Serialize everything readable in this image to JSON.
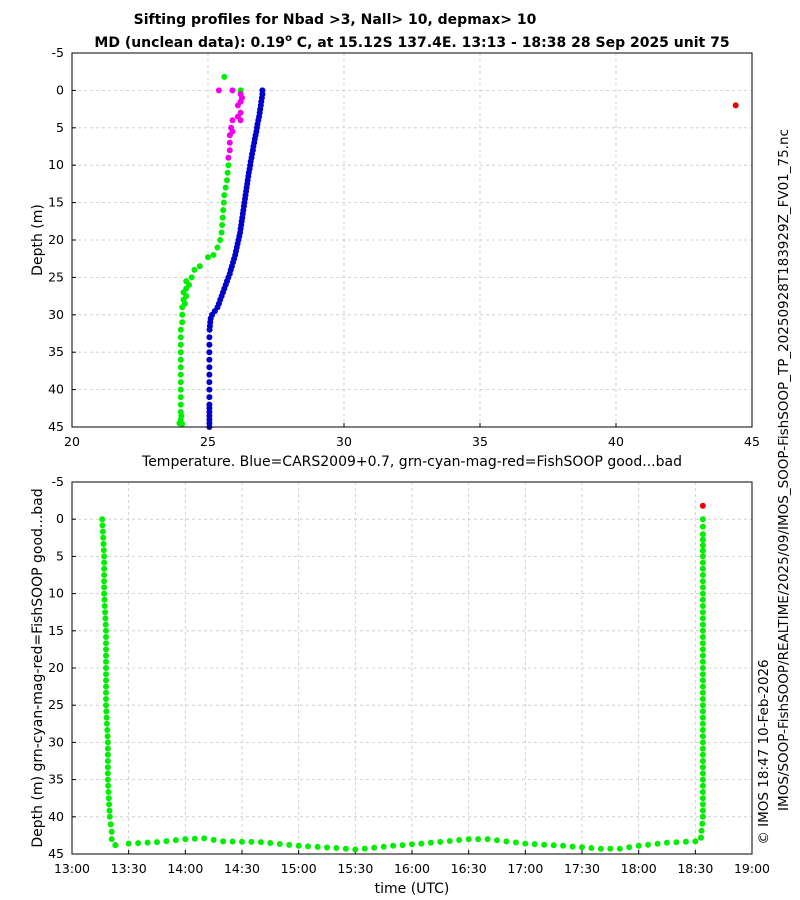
{
  "figure": {
    "title_line1": "Sifting profiles for Nbad >3, Nall> 10, depmax> 10",
    "title_line2_prefix": "MD (unclean data): 0.19",
    "title_line2_degree": "o",
    "title_line2_suffix": " C, at 15.12S 137.4E. 13:13 - 18:38 28 Sep 2025 unit 75",
    "right_label": "IMOS/SOOP-FishSOOP/REALTIME/2025/09/IMOS_SOOP-FishSOOP_TP_20250928T183929Z_FV01_75.nc",
    "right_label_lower": "© IMOS 18:47 10-Feb-2026",
    "colors": {
      "blue": "#0000cc",
      "green": "#00ee00",
      "magenta": "#ee00ee",
      "red": "#ee0000",
      "grid": "#c8c8c8"
    }
  },
  "chart_data": [
    {
      "type": "scatter",
      "title": "",
      "xlabel": "Temperature. Blue=CARS2009+0.7, grn-cyan-mag-red=FishSOOP good...bad",
      "ylabel": "Depth (m)",
      "xlim": [
        20,
        45
      ],
      "ylim": [
        45,
        -5
      ],
      "xticks": [
        "20",
        "25",
        "30",
        "35",
        "40",
        "45"
      ],
      "yticks": [
        "-5",
        "0",
        "5",
        "10",
        "15",
        "20",
        "25",
        "30",
        "35",
        "40",
        "45"
      ],
      "grid": true,
      "series": [
        {
          "name": "CARS2009+0.7",
          "color": "blue",
          "points": [
            [
              27.0,
              0
            ],
            [
              27.0,
              0.5
            ],
            [
              26.98,
              1
            ],
            [
              26.96,
              1.5
            ],
            [
              26.94,
              2
            ],
            [
              26.92,
              2.5
            ],
            [
              26.9,
              3
            ],
            [
              26.88,
              3.5
            ],
            [
              26.85,
              4
            ],
            [
              26.82,
              4.5
            ],
            [
              26.8,
              5
            ],
            [
              26.78,
              5.5
            ],
            [
              26.75,
              6
            ],
            [
              26.72,
              6.5
            ],
            [
              26.7,
              7
            ],
            [
              26.67,
              7.5
            ],
            [
              26.65,
              8
            ],
            [
              26.62,
              8.5
            ],
            [
              26.6,
              9
            ],
            [
              26.57,
              9.5
            ],
            [
              26.55,
              10
            ],
            [
              26.53,
              10.5
            ],
            [
              26.5,
              11
            ],
            [
              26.48,
              11.5
            ],
            [
              26.46,
              12
            ],
            [
              26.44,
              12.5
            ],
            [
              26.42,
              13
            ],
            [
              26.4,
              13.5
            ],
            [
              26.38,
              14
            ],
            [
              26.36,
              14.5
            ],
            [
              26.34,
              15
            ],
            [
              26.32,
              15.5
            ],
            [
              26.3,
              16
            ],
            [
              26.28,
              16.5
            ],
            [
              26.26,
              17
            ],
            [
              26.24,
              17.5
            ],
            [
              26.22,
              18
            ],
            [
              26.2,
              18.5
            ],
            [
              26.18,
              19
            ],
            [
              26.15,
              19.5
            ],
            [
              26.12,
              20
            ],
            [
              26.09,
              20.5
            ],
            [
              26.06,
              21
            ],
            [
              26.03,
              21.5
            ],
            [
              26.0,
              22
            ],
            [
              25.96,
              22.5
            ],
            [
              25.92,
              23
            ],
            [
              25.88,
              23.5
            ],
            [
              25.84,
              24
            ],
            [
              25.8,
              24.5
            ],
            [
              25.75,
              25
            ],
            [
              25.7,
              25.5
            ],
            [
              25.65,
              26
            ],
            [
              25.6,
              26.5
            ],
            [
              25.55,
              27
            ],
            [
              25.5,
              27.5
            ],
            [
              25.45,
              28
            ],
            [
              25.4,
              28.5
            ],
            [
              25.35,
              29
            ],
            [
              25.25,
              29.5
            ],
            [
              25.15,
              30
            ],
            [
              25.1,
              30.5
            ],
            [
              25.08,
              31
            ],
            [
              25.07,
              31.5
            ],
            [
              25.06,
              32
            ],
            [
              25.05,
              33
            ],
            [
              25.05,
              34
            ],
            [
              25.05,
              35
            ],
            [
              25.05,
              36
            ],
            [
              25.05,
              37
            ],
            [
              25.05,
              38
            ],
            [
              25.05,
              39
            ],
            [
              25.05,
              40
            ],
            [
              25.05,
              41
            ],
            [
              25.05,
              42
            ],
            [
              25.05,
              42.5
            ],
            [
              25.05,
              43
            ],
            [
              25.05,
              43.5
            ],
            [
              25.05,
              44
            ],
            [
              25.05,
              44.5
            ],
            [
              25.05,
              45
            ]
          ]
        },
        {
          "name": "FishSOOP good",
          "color": "green",
          "points": [
            [
              25.6,
              -1.8
            ],
            [
              26.2,
              0
            ],
            [
              25.75,
              10
            ],
            [
              25.72,
              11
            ],
            [
              25.7,
              12
            ],
            [
              25.65,
              13
            ],
            [
              25.6,
              14
            ],
            [
              25.58,
              15
            ],
            [
              25.56,
              16
            ],
            [
              25.54,
              17
            ],
            [
              25.52,
              18
            ],
            [
              25.5,
              19
            ],
            [
              25.45,
              20
            ],
            [
              25.35,
              21
            ],
            [
              25.2,
              22
            ],
            [
              25.0,
              22.3
            ],
            [
              24.7,
              23.5
            ],
            [
              24.5,
              24
            ],
            [
              24.4,
              25
            ],
            [
              24.2,
              25.5
            ],
            [
              24.3,
              26
            ],
            [
              24.2,
              26.5
            ],
            [
              24.1,
              27
            ],
            [
              24.2,
              27.5
            ],
            [
              24.1,
              28
            ],
            [
              24.15,
              28.5
            ],
            [
              24.05,
              29
            ],
            [
              24.05,
              30
            ],
            [
              24.05,
              31
            ],
            [
              24.0,
              32
            ],
            [
              24.0,
              33
            ],
            [
              24.0,
              34
            ],
            [
              24.0,
              35
            ],
            [
              24.0,
              36
            ],
            [
              24.0,
              37
            ],
            [
              24.0,
              38
            ],
            [
              24.0,
              39
            ],
            [
              24.0,
              40
            ],
            [
              24.0,
              41
            ],
            [
              24.0,
              42
            ],
            [
              24.0,
              43
            ],
            [
              24.02,
              43.5
            ],
            [
              24.0,
              44
            ],
            [
              23.95,
              44.5
            ],
            [
              24.05,
              44.6
            ]
          ]
        },
        {
          "name": "FishSOOP mid",
          "color": "magenta",
          "points": [
            [
              25.4,
              0
            ],
            [
              25.9,
              0
            ],
            [
              26.2,
              0.5
            ],
            [
              26.25,
              1
            ],
            [
              26.2,
              1.5
            ],
            [
              26.1,
              2
            ],
            [
              26.2,
              3
            ],
            [
              26.1,
              3.5
            ],
            [
              25.9,
              4
            ],
            [
              26.2,
              4
            ],
            [
              25.85,
              5
            ],
            [
              25.9,
              5.5
            ],
            [
              25.8,
              6
            ],
            [
              25.8,
              7
            ],
            [
              25.8,
              8
            ],
            [
              25.75,
              9
            ]
          ]
        },
        {
          "name": "FishSOOP bad",
          "color": "red",
          "points": [
            [
              44.4,
              2
            ]
          ]
        }
      ]
    },
    {
      "type": "scatter",
      "title": "",
      "xlabel": "time (UTC)",
      "ylabel": "Depth (m) grn-cyan-mag-red=FishSOOP good...bad",
      "xlim": [
        "13:00",
        "19:00"
      ],
      "ylim": [
        45,
        -5
      ],
      "xticks": [
        "13:00",
        "13:30",
        "14:00",
        "14:30",
        "15:00",
        "15:30",
        "16:00",
        "16:30",
        "17:00",
        "17:30",
        "18:00",
        "18:30",
        "19:00"
      ],
      "yticks": [
        "-5",
        "0",
        "5",
        "10",
        "15",
        "20",
        "25",
        "30",
        "35",
        "40",
        "45"
      ],
      "grid": true,
      "descent_profile": {
        "color": "green",
        "time_depth": [
          [
            "13:16",
            0
          ],
          [
            "13:17",
            5
          ],
          [
            "13:17",
            10
          ],
          [
            "13:18",
            15
          ],
          [
            "13:18",
            20
          ],
          [
            "13:18",
            25
          ],
          [
            "13:19",
            30
          ],
          [
            "13:19",
            35
          ],
          [
            "13:20",
            40
          ],
          [
            "13:21",
            42
          ],
          [
            "13:21",
            43
          ],
          [
            "13:23",
            43.8
          ]
        ]
      },
      "bottom_track": {
        "color": "green",
        "time_depth": [
          [
            "13:23",
            43.8
          ],
          [
            "13:30",
            43.6
          ],
          [
            "13:45",
            43.4
          ],
          [
            "14:00",
            43.0
          ],
          [
            "14:10",
            42.9
          ],
          [
            "14:20",
            43.3
          ],
          [
            "14:40",
            43.4
          ],
          [
            "15:00",
            43.9
          ],
          [
            "15:20",
            44.2
          ],
          [
            "15:30",
            44.4
          ],
          [
            "15:50",
            43.9
          ],
          [
            "16:10",
            43.5
          ],
          [
            "16:30",
            43.0
          ],
          [
            "16:40",
            43.0
          ],
          [
            "17:00",
            43.6
          ],
          [
            "17:20",
            43.9
          ],
          [
            "17:40",
            44.3
          ],
          [
            "17:50",
            44.3
          ],
          [
            "18:00",
            43.9
          ],
          [
            "18:15",
            43.5
          ],
          [
            "18:30",
            43.3
          ],
          [
            "18:33",
            42.8
          ]
        ]
      },
      "ascent_profile": {
        "color": "green",
        "time_depth": [
          [
            "18:33",
            42.8
          ],
          [
            "18:34",
            40
          ],
          [
            "18:34",
            35
          ],
          [
            "18:34",
            30
          ],
          [
            "18:34",
            25
          ],
          [
            "18:34",
            20
          ],
          [
            "18:34",
            15
          ],
          [
            "18:34",
            10
          ],
          [
            "18:34",
            5
          ],
          [
            "18:34",
            2
          ],
          [
            "18:34",
            0
          ]
        ]
      },
      "flagged": {
        "color": "red",
        "time_depth": [
          [
            "18:34",
            -1.8
          ]
        ]
      }
    }
  ]
}
